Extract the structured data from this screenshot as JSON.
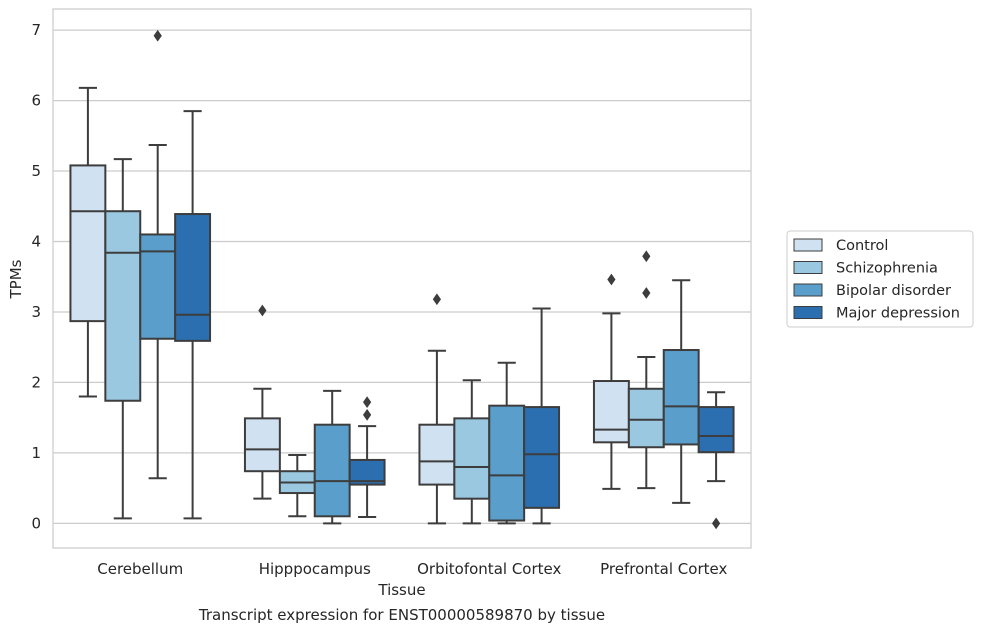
{
  "chart_data": {
    "type": "box",
    "xlabel": "Tissue",
    "ylabel": "TPMs",
    "caption": "Transcript expression for ENST00000589870 by tissue",
    "categories": [
      "Cerebellum",
      "Hipppocampus",
      "Orbitofontal Cortex",
      "Prefrontal Cortex"
    ],
    "ylim": [
      -0.35,
      7.3
    ],
    "yticks": [
      0,
      1,
      2,
      3,
      4,
      5,
      6,
      7
    ],
    "grid": "horizontal",
    "legend_position": "right",
    "series": [
      {
        "name": "Control",
        "color": "#d0e1f2",
        "boxes": [
          {
            "whisker_low": 1.8,
            "q1": 2.87,
            "median": 4.43,
            "q3": 5.08,
            "whisker_high": 6.18,
            "outliers": []
          },
          {
            "whisker_low": 0.35,
            "q1": 0.74,
            "median": 1.05,
            "q3": 1.49,
            "whisker_high": 1.91,
            "outliers": [
              3.02
            ]
          },
          {
            "whisker_low": 0.0,
            "q1": 0.55,
            "median": 0.88,
            "q3": 1.4,
            "whisker_high": 2.45,
            "outliers": [
              3.18
            ]
          },
          {
            "whisker_low": 0.49,
            "q1": 1.15,
            "median": 1.33,
            "q3": 2.02,
            "whisker_high": 2.98,
            "outliers": [
              3.46
            ]
          }
        ]
      },
      {
        "name": "Schizophrenia",
        "color": "#9ac8e0",
        "boxes": [
          {
            "whisker_low": 0.07,
            "q1": 1.74,
            "median": 3.84,
            "q3": 4.43,
            "whisker_high": 5.17,
            "outliers": []
          },
          {
            "whisker_low": 0.1,
            "q1": 0.43,
            "median": 0.58,
            "q3": 0.74,
            "whisker_high": 0.97,
            "outliers": []
          },
          {
            "whisker_low": 0.0,
            "q1": 0.35,
            "median": 0.8,
            "q3": 1.49,
            "whisker_high": 2.03,
            "outliers": []
          },
          {
            "whisker_low": 0.5,
            "q1": 1.08,
            "median": 1.47,
            "q3": 1.91,
            "whisker_high": 2.36,
            "outliers": [
              3.27,
              3.79
            ]
          }
        ]
      },
      {
        "name": "Bipolar disorder",
        "color": "#5a9ecc",
        "boxes": [
          {
            "whisker_low": 0.64,
            "q1": 2.62,
            "median": 3.86,
            "q3": 4.1,
            "whisker_high": 5.37,
            "outliers": [
              6.92
            ]
          },
          {
            "whisker_low": 0.0,
            "q1": 0.1,
            "median": 0.6,
            "q3": 1.4,
            "whisker_high": 1.88,
            "outliers": []
          },
          {
            "whisker_low": 0.0,
            "q1": 0.04,
            "median": 0.68,
            "q3": 1.67,
            "whisker_high": 2.28,
            "outliers": []
          },
          {
            "whisker_low": 0.29,
            "q1": 1.12,
            "median": 1.66,
            "q3": 2.46,
            "whisker_high": 3.45,
            "outliers": []
          }
        ]
      },
      {
        "name": "Major depression",
        "color": "#2c6fb0",
        "boxes": [
          {
            "whisker_low": 0.07,
            "q1": 2.59,
            "median": 2.96,
            "q3": 4.39,
            "whisker_high": 5.85,
            "outliers": []
          },
          {
            "whisker_low": 0.09,
            "q1": 0.55,
            "median": 0.6,
            "q3": 0.9,
            "whisker_high": 1.38,
            "outliers": [
              1.54,
              1.72
            ]
          },
          {
            "whisker_low": 0.0,
            "q1": 0.22,
            "median": 0.98,
            "q3": 1.65,
            "whisker_high": 3.05,
            "outliers": []
          },
          {
            "whisker_low": 0.6,
            "q1": 1.01,
            "median": 1.24,
            "q3": 1.65,
            "whisker_high": 1.86,
            "outliers": [
              0.0
            ]
          }
        ]
      }
    ]
  }
}
